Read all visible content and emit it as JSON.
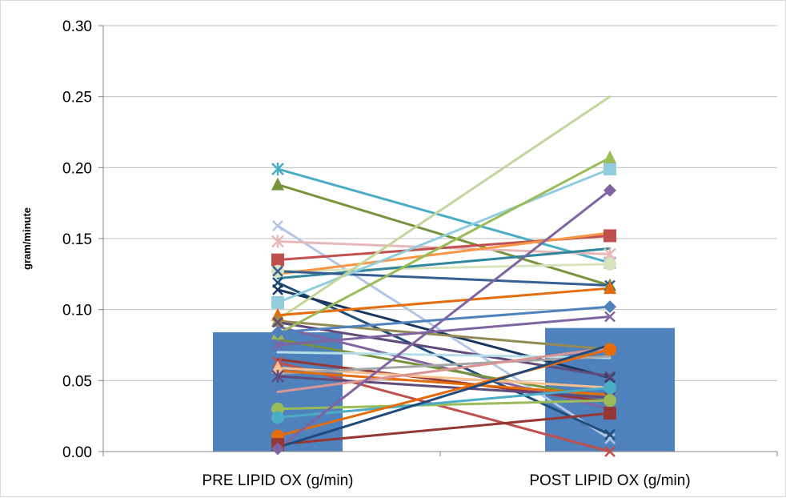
{
  "chart_data": {
    "type": "bar",
    "categories": [
      "PRE LIPID OX (g/min)",
      "POST LIPID OX (g/min)"
    ],
    "bar_values": [
      0.084,
      0.087
    ],
    "bar_color": "#4f81bd",
    "ylabel": "gram/minute",
    "ylim": [
      0,
      0.3
    ],
    "yticks": [
      "0.00",
      "0.05",
      "0.10",
      "0.15",
      "0.20",
      "0.25",
      "0.30"
    ],
    "ytick_values": [
      0,
      0.05,
      0.1,
      0.15,
      0.2,
      0.25,
      0.3
    ],
    "grid": true,
    "legend": "none",
    "series": [
      {
        "values": [
          0.199,
          0.133
        ],
        "color": "#4bacc6",
        "marker": "star"
      },
      {
        "values": [
          0.188,
          0.117
        ],
        "color": "#77933c",
        "marker": "triangle"
      },
      {
        "values": [
          0.159,
          0.009
        ],
        "color": "#b3c6e7",
        "marker": "x"
      },
      {
        "values": [
          0.148,
          0.139
        ],
        "color": "#e6b9b8",
        "marker": "star"
      },
      {
        "values": [
          0.135,
          0.152
        ],
        "color": "#c0504d",
        "marker": "square"
      },
      {
        "values": [
          0.127,
          0.132
        ],
        "color": "#d7e4bd",
        "marker": "circle"
      },
      {
        "values": [
          0.125,
          0.154
        ],
        "color": "#f79646",
        "marker": "none"
      },
      {
        "values": [
          0.122,
          0.143
        ],
        "color": "#31859c",
        "marker": "none"
      },
      {
        "values": [
          0.127,
          0.117
        ],
        "color": "#376092",
        "marker": "x"
      },
      {
        "values": [
          0.119,
          0.012
        ],
        "color": "#1f4e79",
        "marker": "x"
      },
      {
        "values": [
          0.114,
          0.052
        ],
        "color": "#17375e",
        "marker": "x"
      },
      {
        "values": [
          0.105,
          0.199
        ],
        "color": "#93cddd",
        "marker": "square"
      },
      {
        "values": [
          0.093,
          0.25
        ],
        "color": "#c3d69b",
        "marker": "none"
      },
      {
        "values": [
          0.096,
          0.115
        ],
        "color": "#e46c0a",
        "marker": "triangle"
      },
      {
        "values": [
          0.092,
          0.072
        ],
        "color": "#948a54",
        "marker": "triangle"
      },
      {
        "values": [
          0.091,
          0.053
        ],
        "color": "#604a7b",
        "marker": "x"
      },
      {
        "values": [
          0.088,
          0.03
        ],
        "color": "#8064a2",
        "marker": "none"
      },
      {
        "values": [
          0.083,
          0.207
        ],
        "color": "#9bbb59",
        "marker": "triangle"
      },
      {
        "values": [
          0.084,
          0.102
        ],
        "color": "#4f81bd",
        "marker": "diamond"
      },
      {
        "values": [
          0.079,
          0.037
        ],
        "color": "#76923c",
        "marker": "none"
      },
      {
        "values": [
          0.075,
          0.095
        ],
        "color": "#8064a2",
        "marker": "x"
      },
      {
        "values": [
          0.07,
          0.066
        ],
        "color": "#b7dee8",
        "marker": "none"
      },
      {
        "values": [
          0.065,
          0.035
        ],
        "color": "#953735",
        "marker": "none"
      },
      {
        "values": [
          0.063,
          0.0
        ],
        "color": "#c0504d",
        "marker": "x"
      },
      {
        "values": [
          0.059,
          0.045
        ],
        "color": "#fac090",
        "marker": "triangle"
      },
      {
        "values": [
          0.055,
          0.067
        ],
        "color": "#a6a6a6",
        "marker": "none"
      },
      {
        "values": [
          0.057,
          0.04
        ],
        "color": "#e46c0a",
        "marker": "none"
      },
      {
        "values": [
          0.053,
          0.038
        ],
        "color": "#604a7b",
        "marker": "star"
      },
      {
        "values": [
          0.042,
          0.073
        ],
        "color": "#da9694",
        "marker": "none"
      },
      {
        "values": [
          0.03,
          0.036
        ],
        "color": "#9bbb59",
        "marker": "circle"
      },
      {
        "values": [
          0.024,
          0.045
        ],
        "color": "#4bacc6",
        "marker": "circle"
      },
      {
        "values": [
          0.011,
          0.072
        ],
        "color": "#e46c0a",
        "marker": "circle"
      },
      {
        "values": [
          0.005,
          0.027
        ],
        "color": "#953735",
        "marker": "square"
      },
      {
        "values": [
          0.002,
          0.184
        ],
        "color": "#8064a2",
        "marker": "diamond"
      },
      {
        "values": [
          0.003,
          0.075
        ],
        "color": "#1f497d",
        "marker": "none"
      }
    ]
  }
}
